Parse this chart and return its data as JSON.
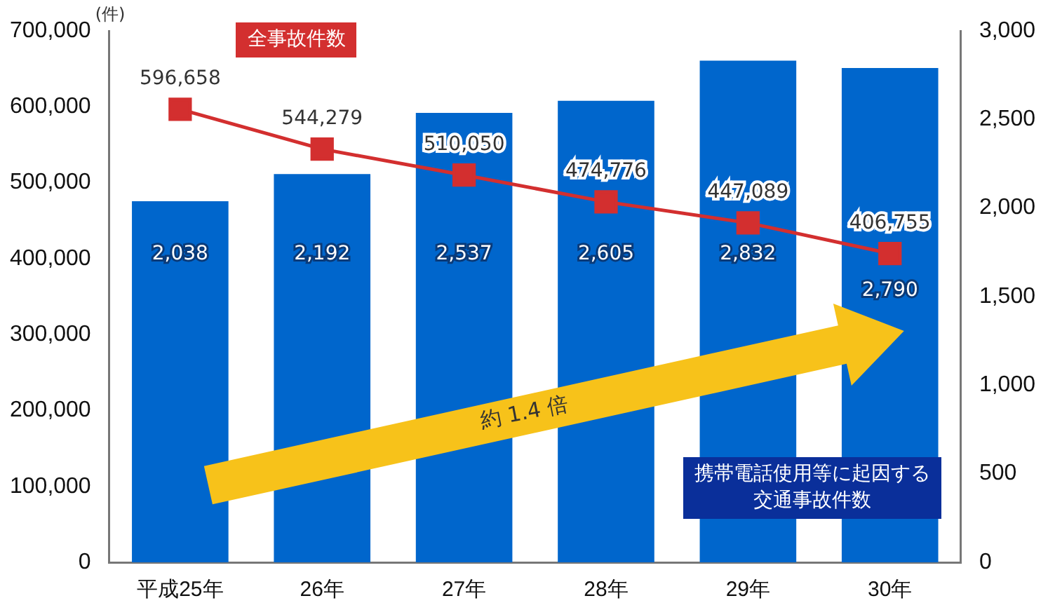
{
  "chart_data": {
    "type": "bar",
    "ylabel": "(件)",
    "categories": [
      "平成25年",
      "26年",
      "27年",
      "28年",
      "29年",
      "30年"
    ],
    "series": [
      {
        "name": "携帯電話使用等に起因する交通事故件数",
        "axis": "y2",
        "color": "#0066cc",
        "values": [
          2038,
          2192,
          2537,
          2605,
          2832,
          2790
        ],
        "value_labels": [
          "2,038",
          "2,192",
          "2,537",
          "2,605",
          "2,832",
          "2,790"
        ]
      },
      {
        "name": "全事故件数",
        "type": "line",
        "axis": "y",
        "color": "#d32f2f",
        "marker": "square",
        "values": [
          596658,
          544279,
          510050,
          474776,
          447089,
          406755
        ],
        "value_labels": [
          "596,658",
          "544,279",
          "510,050",
          "474,776",
          "447,089",
          "406,755"
        ]
      }
    ],
    "ylim": [
      0,
      700000
    ],
    "yticks": [
      {
        "value": 0,
        "label": "0"
      },
      {
        "value": 100000,
        "label": "100,000"
      },
      {
        "value": 200000,
        "label": "200,000"
      },
      {
        "value": 300000,
        "label": "300,000"
      },
      {
        "value": 400000,
        "label": "400,000"
      },
      {
        "value": 500000,
        "label": "500,000"
      },
      {
        "value": 600000,
        "label": "600,000"
      },
      {
        "value": 700000,
        "label": "700,000"
      }
    ],
    "y2lim": [
      0,
      3000
    ],
    "y2ticks": [
      {
        "value": 0,
        "label": "0"
      },
      {
        "value": 500,
        "label": "500"
      },
      {
        "value": 1000,
        "label": "1,000"
      },
      {
        "value": 1500,
        "label": "1,500"
      },
      {
        "value": 2000,
        "label": "2,000"
      },
      {
        "value": 2500,
        "label": "2,500"
      },
      {
        "value": 3000,
        "label": "3,000"
      }
    ],
    "grid": false,
    "legend": false,
    "annotations": [
      "約 1.4 倍"
    ]
  }
}
